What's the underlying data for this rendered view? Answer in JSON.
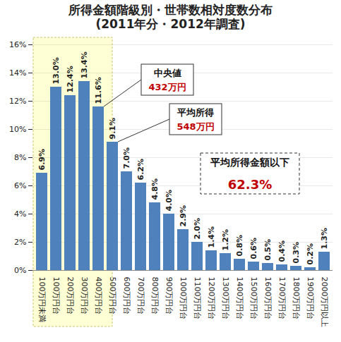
{
  "chart_data": {
    "type": "bar",
    "title": "所得金額階級別・世帯数相対度数分布",
    "subtitle": "(2011年分・2012年調査)",
    "categories": [
      "100万円未満",
      "100万円台",
      "200万円台",
      "300万円台",
      "400万円台",
      "500万円台",
      "600万円台",
      "700万円台",
      "800万円台",
      "900万円台",
      "1000万円台",
      "1100万円台",
      "1200万円台",
      "1300万円台",
      "1400万円台",
      "1500万円台",
      "1600万円台",
      "1700万円台",
      "1800万円台",
      "1900万円台",
      "2000万円以上"
    ],
    "values": [
      6.9,
      13.0,
      12.4,
      13.4,
      11.6,
      9.1,
      7.0,
      6.2,
      4.8,
      4.0,
      2.9,
      2.0,
      1.4,
      1.2,
      0.8,
      0.6,
      0.5,
      0.4,
      0.3,
      0.2,
      1.3
    ],
    "value_labels": [
      "6.9%",
      "13.0%",
      "12.4%",
      "13.4%",
      "11.6%",
      "9.1%",
      "7.0%",
      "6.2%",
      "4.8%",
      "4.0%",
      "2.9%",
      "2.0%",
      "1.4%",
      "1.2%",
      "0.8%",
      "0.6%",
      "0.5%",
      "0.4%",
      "0.3%",
      "0.2%",
      "1.3%"
    ],
    "color": "#4f81bd",
    "ylim": [
      0,
      16
    ],
    "yticks": [
      {
        "value": 0,
        "label": "0%"
      },
      {
        "value": 2,
        "label": "2%"
      },
      {
        "value": 4,
        "label": "4%"
      },
      {
        "value": 6,
        "label": "6%"
      },
      {
        "value": 8,
        "label": "8%"
      },
      {
        "value": 10,
        "label": "10%"
      },
      {
        "value": 12,
        "label": "12%"
      },
      {
        "value": 14,
        "label": "14%"
      },
      {
        "value": 16,
        "label": "16%"
      }
    ],
    "grid": true,
    "data_labels": true,
    "annotations": [
      {
        "text": "中央値",
        "highlight": "432万円"
      },
      {
        "text": "平均所得",
        "highlight": "548万円"
      },
      {
        "text": "平均所得金額以下",
        "highlight": "62.3%"
      }
    ]
  }
}
